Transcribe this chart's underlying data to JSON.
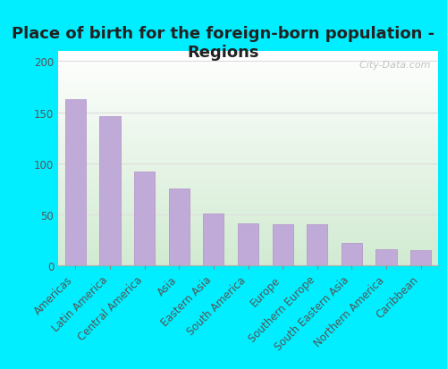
{
  "title": "Place of birth for the foreign-born population -\nRegions",
  "categories": [
    "Americas",
    "Latin America",
    "Central America",
    "Asia",
    "Eastern Asia",
    "South America",
    "Europe",
    "Southern Europe",
    "South Eastern Asia",
    "Northern America",
    "Caribbean"
  ],
  "values": [
    163,
    146,
    92,
    75,
    51,
    41,
    40,
    40,
    22,
    16,
    15
  ],
  "bar_color": "#c0aad8",
  "bar_edge_color": "#b090c8",
  "background_outer": "#00eeff",
  "background_inner_topleft": "#d6ecd6",
  "background_inner_topright": "#f0f4ee",
  "background_inner_bottom": "#ffffff",
  "title_fontsize": 13,
  "tick_fontsize": 8.5,
  "ylabel_ticks": [
    0,
    50,
    100,
    150,
    200
  ],
  "ylim": [
    0,
    210
  ],
  "watermark_text": "  City-Data.com",
  "grid_color": "#dddddd"
}
